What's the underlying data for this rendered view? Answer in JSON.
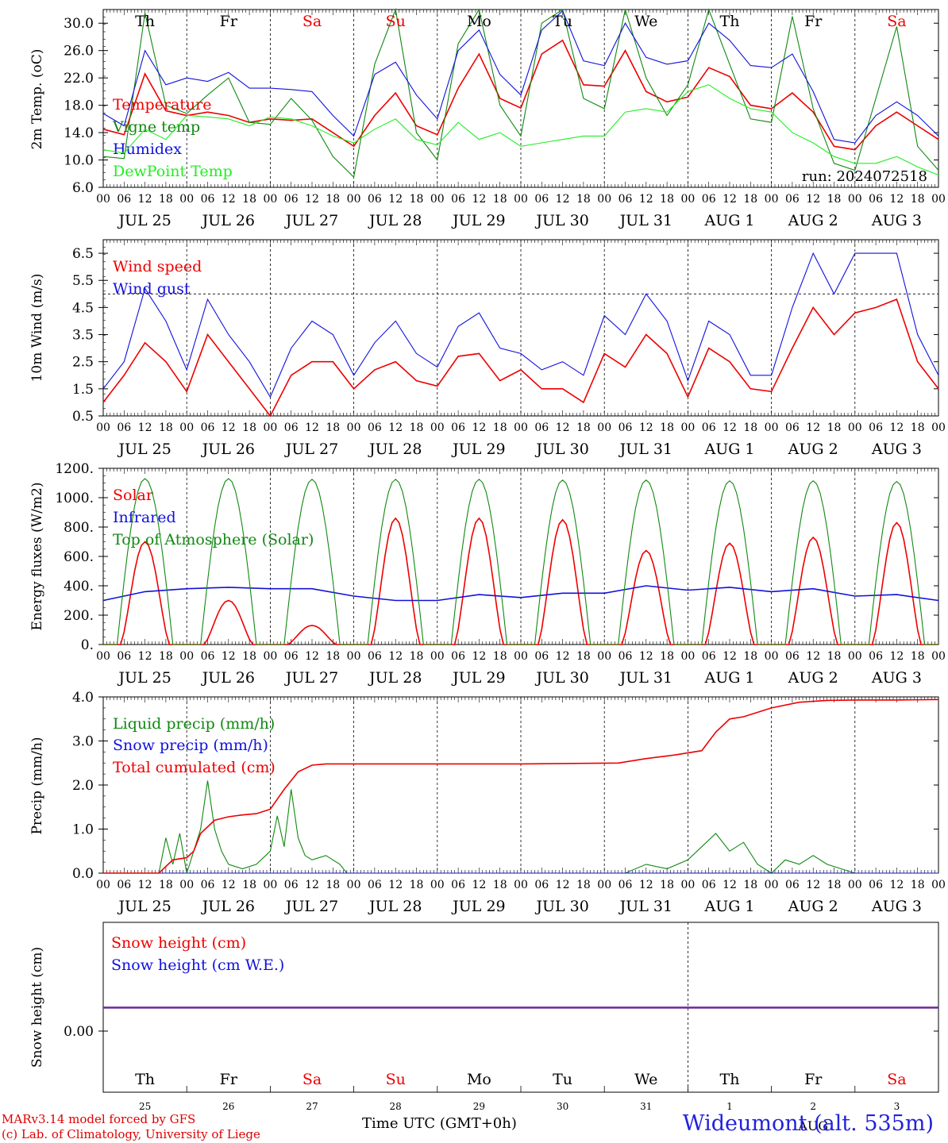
{
  "footer": {
    "model_line": "MARv3.14 model forced by GFS",
    "copyright_line": "(c) Lab. of Climatology, University of Liege",
    "station": "Wideumont (alt. 535m)",
    "xaxis_title": "Time UTC (GMT+0h)"
  },
  "colors": {
    "red": "#ee0000",
    "green": "#118811",
    "blue": "#1111dd",
    "lightgreen": "#22ee22",
    "purple": "#7a3a9a"
  },
  "chart_data": {
    "shared": {
      "x_unit": "hours since 2024-07-25 00 UTC",
      "xlim": [
        0,
        240
      ],
      "hour_ticks": [
        "00",
        "06",
        "12",
        "18"
      ],
      "date_labels": [
        "JUL 25",
        "JUL 26",
        "JUL 27",
        "JUL 28",
        "JUL 29",
        "JUL 30",
        "JUL 31",
        "AUG  1",
        "AUG  2",
        "AUG  3"
      ],
      "weekdays": [
        "Th",
        "Fr",
        "Sa",
        "Su",
        "Mo",
        "Tu",
        "We",
        "Th",
        "Fr",
        "Sa"
      ],
      "weekday_colors": [
        "black",
        "black",
        "red",
        "red",
        "black",
        "black",
        "black",
        "black",
        "black",
        "red"
      ],
      "bottom_day_numbers": [
        "25",
        "26",
        "27",
        "28",
        "29",
        "30",
        "31",
        "1",
        "2",
        "3"
      ],
      "bottom_month_label": "AUG"
    },
    "panels": [
      {
        "type": "line",
        "ylabel": "2m Temp. (oC)",
        "ylim": [
          6,
          32
        ],
        "yticks": [
          "6.0",
          "10.0",
          "14.0",
          "18.0",
          "22.0",
          "26.0",
          "30.0"
        ],
        "annotation": "run: 2024072518",
        "series": [
          {
            "name": "Temperature",
            "color": "red",
            "x": [
              0,
              6,
              12,
              18,
              24,
              30,
              36,
              42,
              48,
              54,
              60,
              66,
              72,
              78,
              84,
              90,
              96,
              102,
              108,
              114,
              120,
              126,
              132,
              138,
              144,
              150,
              156,
              162,
              168,
              174,
              180,
              186,
              192,
              198,
              204,
              210,
              216,
              222,
              228,
              234,
              240
            ],
            "y": [
              14.5,
              13.7,
              22.6,
              17.2,
              16.5,
              17.0,
              16.5,
              15.5,
              16.0,
              15.8,
              16.0,
              14.0,
              12.0,
              16.5,
              19.8,
              15.0,
              13.7,
              20.5,
              25.5,
              19.0,
              17.6,
              25.5,
              27.5,
              21.0,
              20.8,
              26.0,
              20.0,
              18.5,
              19.2,
              23.5,
              22.2,
              18.0,
              17.5,
              19.8,
              17.0,
              12.0,
              11.5,
              15.0,
              17.0,
              15.0,
              13.0
            ]
          },
          {
            "name": "Vigne temp",
            "color": "green",
            "x": [
              0,
              6,
              12,
              18,
              24,
              30,
              36,
              42,
              48,
              54,
              60,
              66,
              72,
              78,
              84,
              90,
              96,
              102,
              108,
              114,
              120,
              126,
              132,
              138,
              144,
              150,
              156,
              162,
              168,
              174,
              180,
              186,
              192,
              198,
              204,
              210,
              216,
              222,
              228,
              234,
              240
            ],
            "y": [
              10.5,
              10.2,
              31.5,
              18.0,
              16.8,
              19.5,
              22.0,
              15.5,
              15.2,
              19.0,
              15.8,
              10.5,
              7.5,
              24.0,
              32.0,
              14.0,
              10.0,
              27.0,
              32.0,
              18.0,
              13.5,
              30.0,
              32.0,
              19.0,
              17.5,
              32.0,
              22.0,
              16.5,
              21.0,
              32.0,
              24.0,
              16.0,
              15.5,
              31.0,
              17.5,
              9.5,
              8.5,
              19.0,
              29.5,
              12.0,
              8.5
            ]
          },
          {
            "name": "Humidex",
            "color": "blue",
            "x": [
              0,
              6,
              12,
              18,
              24,
              30,
              36,
              42,
              48,
              54,
              60,
              66,
              72,
              78,
              84,
              90,
              96,
              102,
              108,
              114,
              120,
              126,
              132,
              138,
              144,
              150,
              156,
              162,
              168,
              174,
              180,
              186,
              192,
              198,
              204,
              210,
              216,
              222,
              228,
              234,
              240
            ],
            "y": [
              16.8,
              15.0,
              26.0,
              21.0,
              22.0,
              21.5,
              22.8,
              20.5,
              20.5,
              20.3,
              20.0,
              16.5,
              13.5,
              22.5,
              24.3,
              19.5,
              16.0,
              26.0,
              29.0,
              22.5,
              19.5,
              29.0,
              31.8,
              24.5,
              23.8,
              30.0,
              25.0,
              24.0,
              24.5,
              30.0,
              27.5,
              23.8,
              23.5,
              25.5,
              20.0,
              13.0,
              12.5,
              16.5,
              18.5,
              16.5,
              13.5
            ]
          },
          {
            "name": "DewPoint Temp",
            "color": "lightgreen",
            "x": [
              0,
              6,
              12,
              18,
              24,
              30,
              36,
              42,
              48,
              54,
              60,
              66,
              72,
              78,
              84,
              90,
              96,
              102,
              108,
              114,
              120,
              126,
              132,
              138,
              144,
              150,
              156,
              162,
              168,
              174,
              180,
              186,
              192,
              198,
              204,
              210,
              216,
              222,
              228,
              234,
              240
            ],
            "y": [
              11.5,
              11.0,
              14.5,
              13.0,
              16.5,
              16.3,
              16.0,
              15.0,
              16.3,
              16.0,
              15.0,
              13.5,
              12.5,
              14.5,
              16.0,
              13.0,
              12.2,
              15.5,
              13.0,
              14.0,
              12.0,
              12.5,
              13.0,
              13.5,
              13.5,
              17.0,
              17.5,
              17.0,
              20.0,
              21.0,
              19.0,
              17.5,
              17.0,
              14.0,
              12.5,
              10.5,
              9.5,
              9.5,
              10.5,
              9.0,
              7.8
            ]
          }
        ]
      },
      {
        "type": "line",
        "ylabel": "10m Wind (m/s)",
        "ylim": [
          0.5,
          7.0
        ],
        "yticks": [
          "0.5",
          "1.5",
          "2.5",
          "3.5",
          "4.5",
          "5.5",
          "6.5"
        ],
        "reference_line": 5.0,
        "series": [
          {
            "name": "Wind speed",
            "color": "red",
            "x": [
              0,
              6,
              12,
              18,
              24,
              30,
              36,
              42,
              48,
              54,
              60,
              66,
              72,
              78,
              84,
              90,
              96,
              102,
              108,
              114,
              120,
              126,
              132,
              138,
              144,
              150,
              156,
              162,
              168,
              174,
              180,
              186,
              192,
              198,
              204,
              210,
              216,
              222,
              228,
              234,
              240
            ],
            "y": [
              1.0,
              2.0,
              3.2,
              2.5,
              1.4,
              3.5,
              2.5,
              1.5,
              0.5,
              2.0,
              2.5,
              2.5,
              1.5,
              2.2,
              2.5,
              1.8,
              1.6,
              2.7,
              2.8,
              1.8,
              2.2,
              1.5,
              1.5,
              1.0,
              2.8,
              2.3,
              3.5,
              2.8,
              1.2,
              3.0,
              2.5,
              1.5,
              1.4,
              3.0,
              4.5,
              3.5,
              4.3,
              4.5,
              4.8,
              2.5,
              1.5
            ]
          },
          {
            "name": "Wind gust",
            "color": "blue",
            "x": [
              0,
              6,
              12,
              18,
              24,
              30,
              36,
              42,
              48,
              54,
              60,
              66,
              72,
              78,
              84,
              90,
              96,
              102,
              108,
              114,
              120,
              126,
              132,
              138,
              144,
              150,
              156,
              162,
              168,
              174,
              180,
              186,
              192,
              198,
              204,
              210,
              216,
              222,
              228,
              234,
              240
            ],
            "y": [
              1.5,
              2.5,
              5.2,
              4.0,
              2.2,
              4.8,
              3.5,
              2.5,
              1.2,
              3.0,
              4.0,
              3.5,
              2.0,
              3.2,
              4.0,
              2.8,
              2.3,
              3.8,
              4.3,
              3.0,
              2.8,
              2.2,
              2.5,
              2.0,
              4.2,
              3.5,
              5.0,
              4.0,
              1.8,
              4.0,
              3.5,
              2.0,
              2.0,
              4.5,
              6.5,
              5.0,
              6.5,
              6.5,
              6.5,
              3.5,
              2.0
            ]
          }
        ]
      },
      {
        "type": "line",
        "ylabel": "Energy fluxes (W/m2)",
        "ylim": [
          0,
          1200
        ],
        "yticks": [
          "0.",
          "200.",
          "400.",
          "600.",
          "800.",
          "1000.",
          "1200."
        ],
        "series": [
          {
            "name": "Solar",
            "color": "red",
            "peak_hours": [
              12,
              36,
              60,
              84,
              108,
              132,
              156,
              180,
              204,
              228
            ],
            "daily_peak": [
              700,
              300,
              130,
              860,
              860,
              850,
              640,
              690,
              730,
              830
            ]
          },
          {
            "name": "Infrared",
            "color": "blue",
            "x": [
              0,
              12,
              24,
              36,
              48,
              60,
              72,
              84,
              96,
              108,
              120,
              132,
              144,
              156,
              168,
              180,
              192,
              204,
              216,
              228,
              240
            ],
            "y": [
              300,
              360,
              380,
              390,
              380,
              380,
              330,
              300,
              300,
              340,
              320,
              350,
              350,
              400,
              370,
              390,
              360,
              380,
              330,
              340,
              300
            ]
          },
          {
            "name": "Top of Atmosphere (Solar)",
            "color": "green",
            "peak_hours": [
              12,
              36,
              60,
              84,
              108,
              132,
              156,
              180,
              204,
              228
            ],
            "daily_peak": [
              1130,
              1130,
              1125,
              1125,
              1125,
              1120,
              1120,
              1115,
              1115,
              1110
            ]
          }
        ]
      },
      {
        "type": "line",
        "ylabel": "Precip (mm/h)",
        "ylim": [
          0,
          4
        ],
        "yticks": [
          "0.0",
          "1.0",
          "2.0",
          "3.0",
          "4.0"
        ],
        "series": [
          {
            "name": "Liquid precip (mm/h)",
            "color": "green",
            "x": [
              0,
              16,
              18,
              20,
              22,
              24,
              26,
              28,
              30,
              32,
              34,
              36,
              40,
              44,
              48,
              50,
              52,
              54,
              56,
              58,
              60,
              64,
              68,
              70,
              72,
              150,
              156,
              162,
              168,
              172,
              176,
              180,
              184,
              188,
              192,
              196,
              200,
              204,
              208,
              212,
              216,
              240
            ],
            "y": [
              0,
              0,
              0.8,
              0.2,
              0.9,
              0,
              0.5,
              1.0,
              2.1,
              1.0,
              0.5,
              0.2,
              0.1,
              0.2,
              0.5,
              1.3,
              0.6,
              1.9,
              0.8,
              0.4,
              0.3,
              0.4,
              0.2,
              0,
              0,
              0,
              0.2,
              0.1,
              0.3,
              0.6,
              0.9,
              0.5,
              0.7,
              0.2,
              0,
              0.3,
              0.2,
              0.4,
              0.2,
              0.1,
              0,
              0
            ]
          },
          {
            "name": "Snow precip (mm/h)",
            "color": "blue",
            "x": [
              0,
              240
            ],
            "y": [
              0,
              0
            ]
          },
          {
            "name": "Total cumulated (cm)",
            "color": "red",
            "x": [
              0,
              16,
              20,
              24,
              26,
              28,
              32,
              36,
              40,
              44,
              48,
              52,
              56,
              60,
              64,
              68,
              72,
              120,
              148,
              156,
              164,
              172,
              176,
              180,
              184,
              192,
              200,
              208,
              216,
              228,
              240
            ],
            "y": [
              0,
              0,
              0.3,
              0.35,
              0.5,
              0.9,
              1.2,
              1.28,
              1.32,
              1.35,
              1.45,
              1.9,
              2.3,
              2.45,
              2.48,
              2.48,
              2.48,
              2.48,
              2.5,
              2.6,
              2.68,
              2.78,
              3.2,
              3.5,
              3.55,
              3.75,
              3.88,
              3.92,
              3.93,
              3.93,
              3.94
            ]
          }
        ]
      },
      {
        "type": "line",
        "ylabel": "Snow height (cm)",
        "yticks": [
          "0.00"
        ],
        "series": [
          {
            "name": "Snow height (cm)",
            "color": "red",
            "x": [
              0,
              240
            ],
            "y": [
              0,
              0
            ]
          },
          {
            "name": "Snow height (cm W.E.)",
            "color": "blue",
            "x": [
              0,
              240
            ],
            "y": [
              0,
              0
            ]
          }
        ]
      }
    ]
  }
}
